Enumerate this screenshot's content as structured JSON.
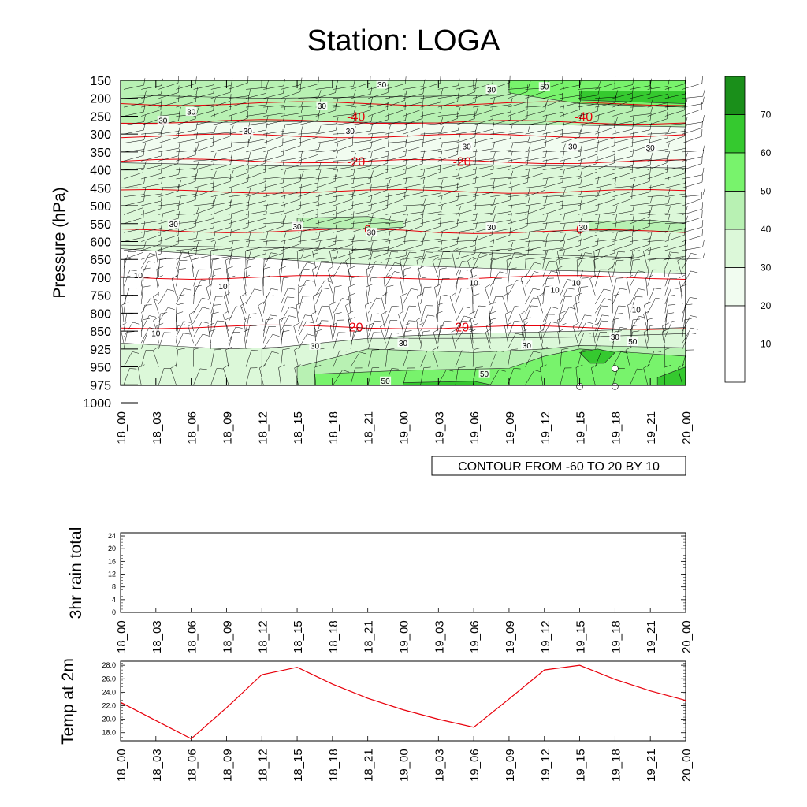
{
  "title": "Station: LOGA",
  "time_labels": [
    "18_00",
    "18_03",
    "18_06",
    "18_09",
    "18_12",
    "18_15",
    "18_18",
    "18_21",
    "19_00",
    "19_03",
    "19_06",
    "19_09",
    "19_12",
    "19_15",
    "19_18",
    "19_21",
    "20_00"
  ],
  "colors": {
    "temp_line": "#e8000b",
    "shade": [
      "#ffffff",
      "#f1fcf0",
      "#dcf8d9",
      "#b8f1b3",
      "#78f36c",
      "#35c92f",
      "#1a8f1a"
    ]
  },
  "chart_data": [
    {
      "type": "heatmap",
      "panel": "cross-section",
      "title": "Station: LOGA",
      "ylabel": "Pressure (hPa)",
      "y_ticks": [
        150,
        200,
        250,
        300,
        350,
        400,
        450,
        500,
        550,
        600,
        650,
        700,
        750,
        800,
        850,
        925,
        950,
        975,
        1000
      ],
      "y_reversed": true,
      "x": [
        "18_00",
        "18_03",
        "18_06",
        "18_09",
        "18_12",
        "18_15",
        "18_18",
        "18_21",
        "19_00",
        "19_03",
        "19_06",
        "19_09",
        "19_12",
        "19_15",
        "19_18",
        "19_21",
        "20_00"
      ],
      "shading": {
        "levels": [
          10,
          20,
          30,
          40,
          50,
          60,
          70
        ],
        "colorbar_labels": [
          "10",
          "20",
          "30",
          "40",
          "50",
          "60",
          "70"
        ],
        "layers": [
          {
            "lev_index": 0,
            "contour_labels": [
              "10",
              "10",
              "10",
              "10",
              "10",
              "10",
              "10"
            ]
          },
          {
            "lev_index": 1,
            "contour_labels": [
              "30",
              "30",
              "30",
              "30",
              "30",
              "30",
              "30",
              "30",
              "30",
              "30",
              "30",
              "30",
              "30",
              "30",
              "30",
              "30",
              "30"
            ]
          },
          {
            "lev_index": 3,
            "contour_labels": [
              "50",
              "50",
              "50",
              "50"
            ]
          }
        ]
      },
      "temperature_contours": {
        "note": "CONTOUR FROM -60 TO 20 BY 10",
        "labels": [
          {
            "value": "-40",
            "pressure": 250,
            "times": [
              "18_21",
              "19_15"
            ]
          },
          {
            "value": "-20",
            "pressure": 375,
            "times": [
              "18_21",
              "19_06"
            ]
          },
          {
            "value": "0",
            "pressure": 565,
            "times": [
              "18_21",
              "19_15"
            ]
          },
          {
            "value": "20",
            "pressure": 838,
            "times": [
              "18_21",
              "19_06"
            ]
          }
        ],
        "isotherm_pressures_hPa": [
          215,
          265,
          305,
          375,
          460,
          570,
          700,
          838
        ]
      },
      "wind_barbs": true,
      "grid": false
    },
    {
      "type": "line",
      "panel": "rain",
      "ylabel": "3hr rain total",
      "x": [
        "18_00",
        "18_03",
        "18_06",
        "18_09",
        "18_12",
        "18_15",
        "18_18",
        "18_21",
        "19_00",
        "19_03",
        "19_06",
        "19_09",
        "19_12",
        "19_15",
        "19_18",
        "19_21",
        "20_00"
      ],
      "y": [
        0,
        0,
        0,
        0,
        0,
        0,
        0,
        0,
        0,
        0,
        0,
        0,
        0,
        0,
        0,
        0,
        0
      ],
      "ylim": [
        0,
        25
      ],
      "y_ticks": [
        0,
        4,
        8,
        12,
        16,
        20,
        24
      ]
    },
    {
      "type": "line",
      "panel": "temp",
      "ylabel": "Temp at 2m",
      "x": [
        "18_00",
        "18_03",
        "18_06",
        "18_09",
        "18_12",
        "18_15",
        "18_18",
        "18_21",
        "19_00",
        "19_03",
        "19_06",
        "19_09",
        "19_12",
        "19_15",
        "19_18",
        "19_21",
        "20_00"
      ],
      "y": [
        22.5,
        19.8,
        17.1,
        21.7,
        26.6,
        27.7,
        25.2,
        23.1,
        21.4,
        20.0,
        18.8,
        23.0,
        27.3,
        28.0,
        25.9,
        24.2,
        22.8
      ],
      "ylim": [
        16.8,
        28.6
      ],
      "y_ticks": [
        18.0,
        20.0,
        22.0,
        24.0,
        26.0,
        28.0
      ],
      "y_tick_labels": [
        "18.0",
        "20.0",
        "22.0",
        "24.0",
        "26.0",
        "28.0"
      ]
    }
  ]
}
